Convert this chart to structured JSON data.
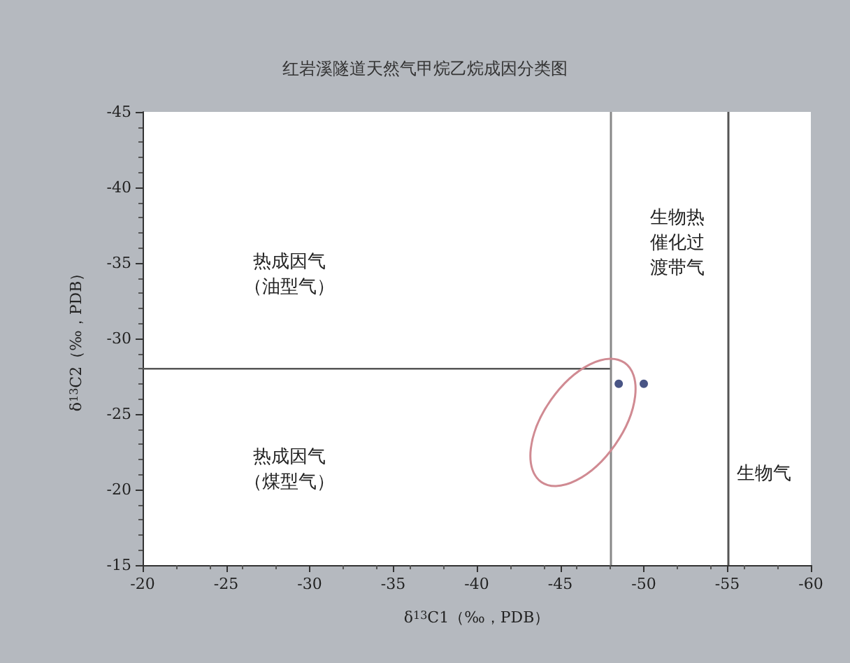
{
  "chart_data": {
    "type": "scatter",
    "title": "红岩溪隧道天然气甲烷乙烷成因分类图",
    "xlabel": "δ$^{13}$C1（‰，PDB）",
    "ylabel": "δ$^{13}$C2（‰，PDB）",
    "xlim": [
      -20,
      -60
    ],
    "xticks": [
      -20,
      -25,
      -30,
      -35,
      -40,
      -45,
      -50,
      -55,
      -60
    ],
    "ylim": [
      -15,
      -45
    ],
    "yticks": [
      -15,
      -20,
      -25,
      -30,
      -35,
      -40,
      -45
    ],
    "grid": false,
    "marker": "circle",
    "series": [
      {
        "color": "#1c2a66",
        "x": [
          -48.5,
          -50
        ],
        "values": [
          -27,
          -27
        ]
      },
      {
        "type": "line",
        "color": "#555555",
        "x": [
          -20,
          -48
        ],
        "values": [
          -28,
          -28
        ],
        "marker": "none"
      }
    ],
    "ref_lines": [
      {
        "axis": "x",
        "value": -48,
        "color": "#888888"
      },
      {
        "axis": "x",
        "value": -55,
        "color": "#555555"
      }
    ],
    "annotations": [
      "热成因气（油型气）",
      "热成因气（煤型气）",
      "生物热催化过渡带气",
      "生物气"
    ]
  }
}
